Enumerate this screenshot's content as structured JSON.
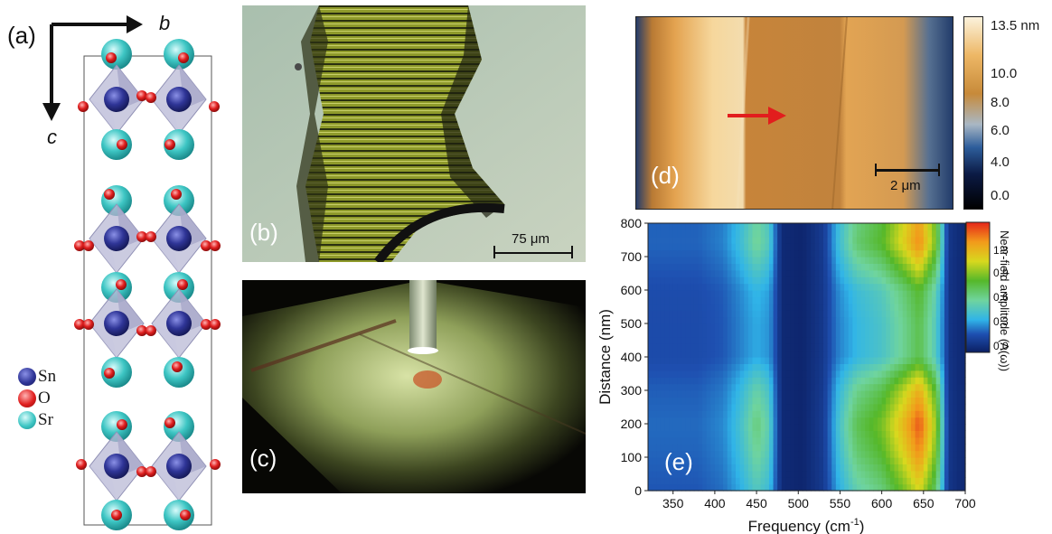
{
  "panel_a": {
    "label": "(a)",
    "axis_b": "b",
    "axis_c": "c",
    "legend": [
      {
        "label": "Sn",
        "color": "#2f3597"
      },
      {
        "label": "O",
        "color": "#e01f1f"
      },
      {
        "label": "Sr",
        "color": "#3ec6c4"
      }
    ]
  },
  "panel_b": {
    "label": "(b)",
    "scalebar_label": "75 μm"
  },
  "panel_c": {
    "label": "(c)"
  },
  "panel_d": {
    "label": "(d)",
    "scalebar_label": "2 μm",
    "colorbar_ticks": [
      "13.5 nm",
      "10.0",
      "8.0",
      "6.0",
      "4.0",
      "0.0"
    ]
  },
  "panel_e": {
    "label": "(e)",
    "xlabel": "Frequency (cm",
    "xlabel_sup": "-1",
    "xlabel_end": ")",
    "ylabel": "Distance (nm)",
    "colorbar_title": "Near-field amplitude (A(ω))",
    "colorbar_ticks": [
      "1.3",
      "0.9",
      "0.6",
      "0.3",
      "0.0"
    ]
  },
  "chart_data": {
    "type": "heatmap",
    "xlabel": "Frequency (cm-1)",
    "ylabel": "Distance (nm)",
    "xlim": [
      320,
      700
    ],
    "ylim": [
      0,
      800
    ],
    "x_ticks": [
      350,
      400,
      450,
      500,
      550,
      600,
      650,
      700
    ],
    "y_ticks": [
      0,
      100,
      200,
      300,
      400,
      500,
      600,
      700,
      800
    ],
    "colorbar_range": [
      0.0,
      1.5
    ],
    "frequency_profile": [
      {
        "x": 330,
        "v": 0.22
      },
      {
        "x": 380,
        "v": 0.22
      },
      {
        "x": 410,
        "v": 0.26
      },
      {
        "x": 430,
        "v": 0.36
      },
      {
        "x": 450,
        "v": 0.5
      },
      {
        "x": 465,
        "v": 0.42
      },
      {
        "x": 480,
        "v": 0.05
      },
      {
        "x": 505,
        "v": 0.03
      },
      {
        "x": 530,
        "v": 0.12
      },
      {
        "x": 548,
        "v": 0.36
      },
      {
        "x": 570,
        "v": 0.55
      },
      {
        "x": 600,
        "v": 0.66
      },
      {
        "x": 625,
        "v": 0.86
      },
      {
        "x": 645,
        "v": 1.05
      },
      {
        "x": 665,
        "v": 0.7
      },
      {
        "x": 680,
        "v": 0.1
      },
      {
        "x": 695,
        "v": 0.05
      }
    ],
    "distance_profile": [
      {
        "y": 0,
        "s": 1.0
      },
      {
        "y": 120,
        "s": 1.25
      },
      {
        "y": 200,
        "s": 1.35
      },
      {
        "y": 300,
        "s": 1.15
      },
      {
        "y": 350,
        "s": 0.95
      },
      {
        "y": 400,
        "s": 0.72
      },
      {
        "y": 500,
        "s": 0.72
      },
      {
        "y": 600,
        "s": 0.78
      },
      {
        "y": 680,
        "s": 1.05
      },
      {
        "y": 740,
        "s": 1.25
      },
      {
        "y": 800,
        "s": 1.2
      }
    ]
  }
}
